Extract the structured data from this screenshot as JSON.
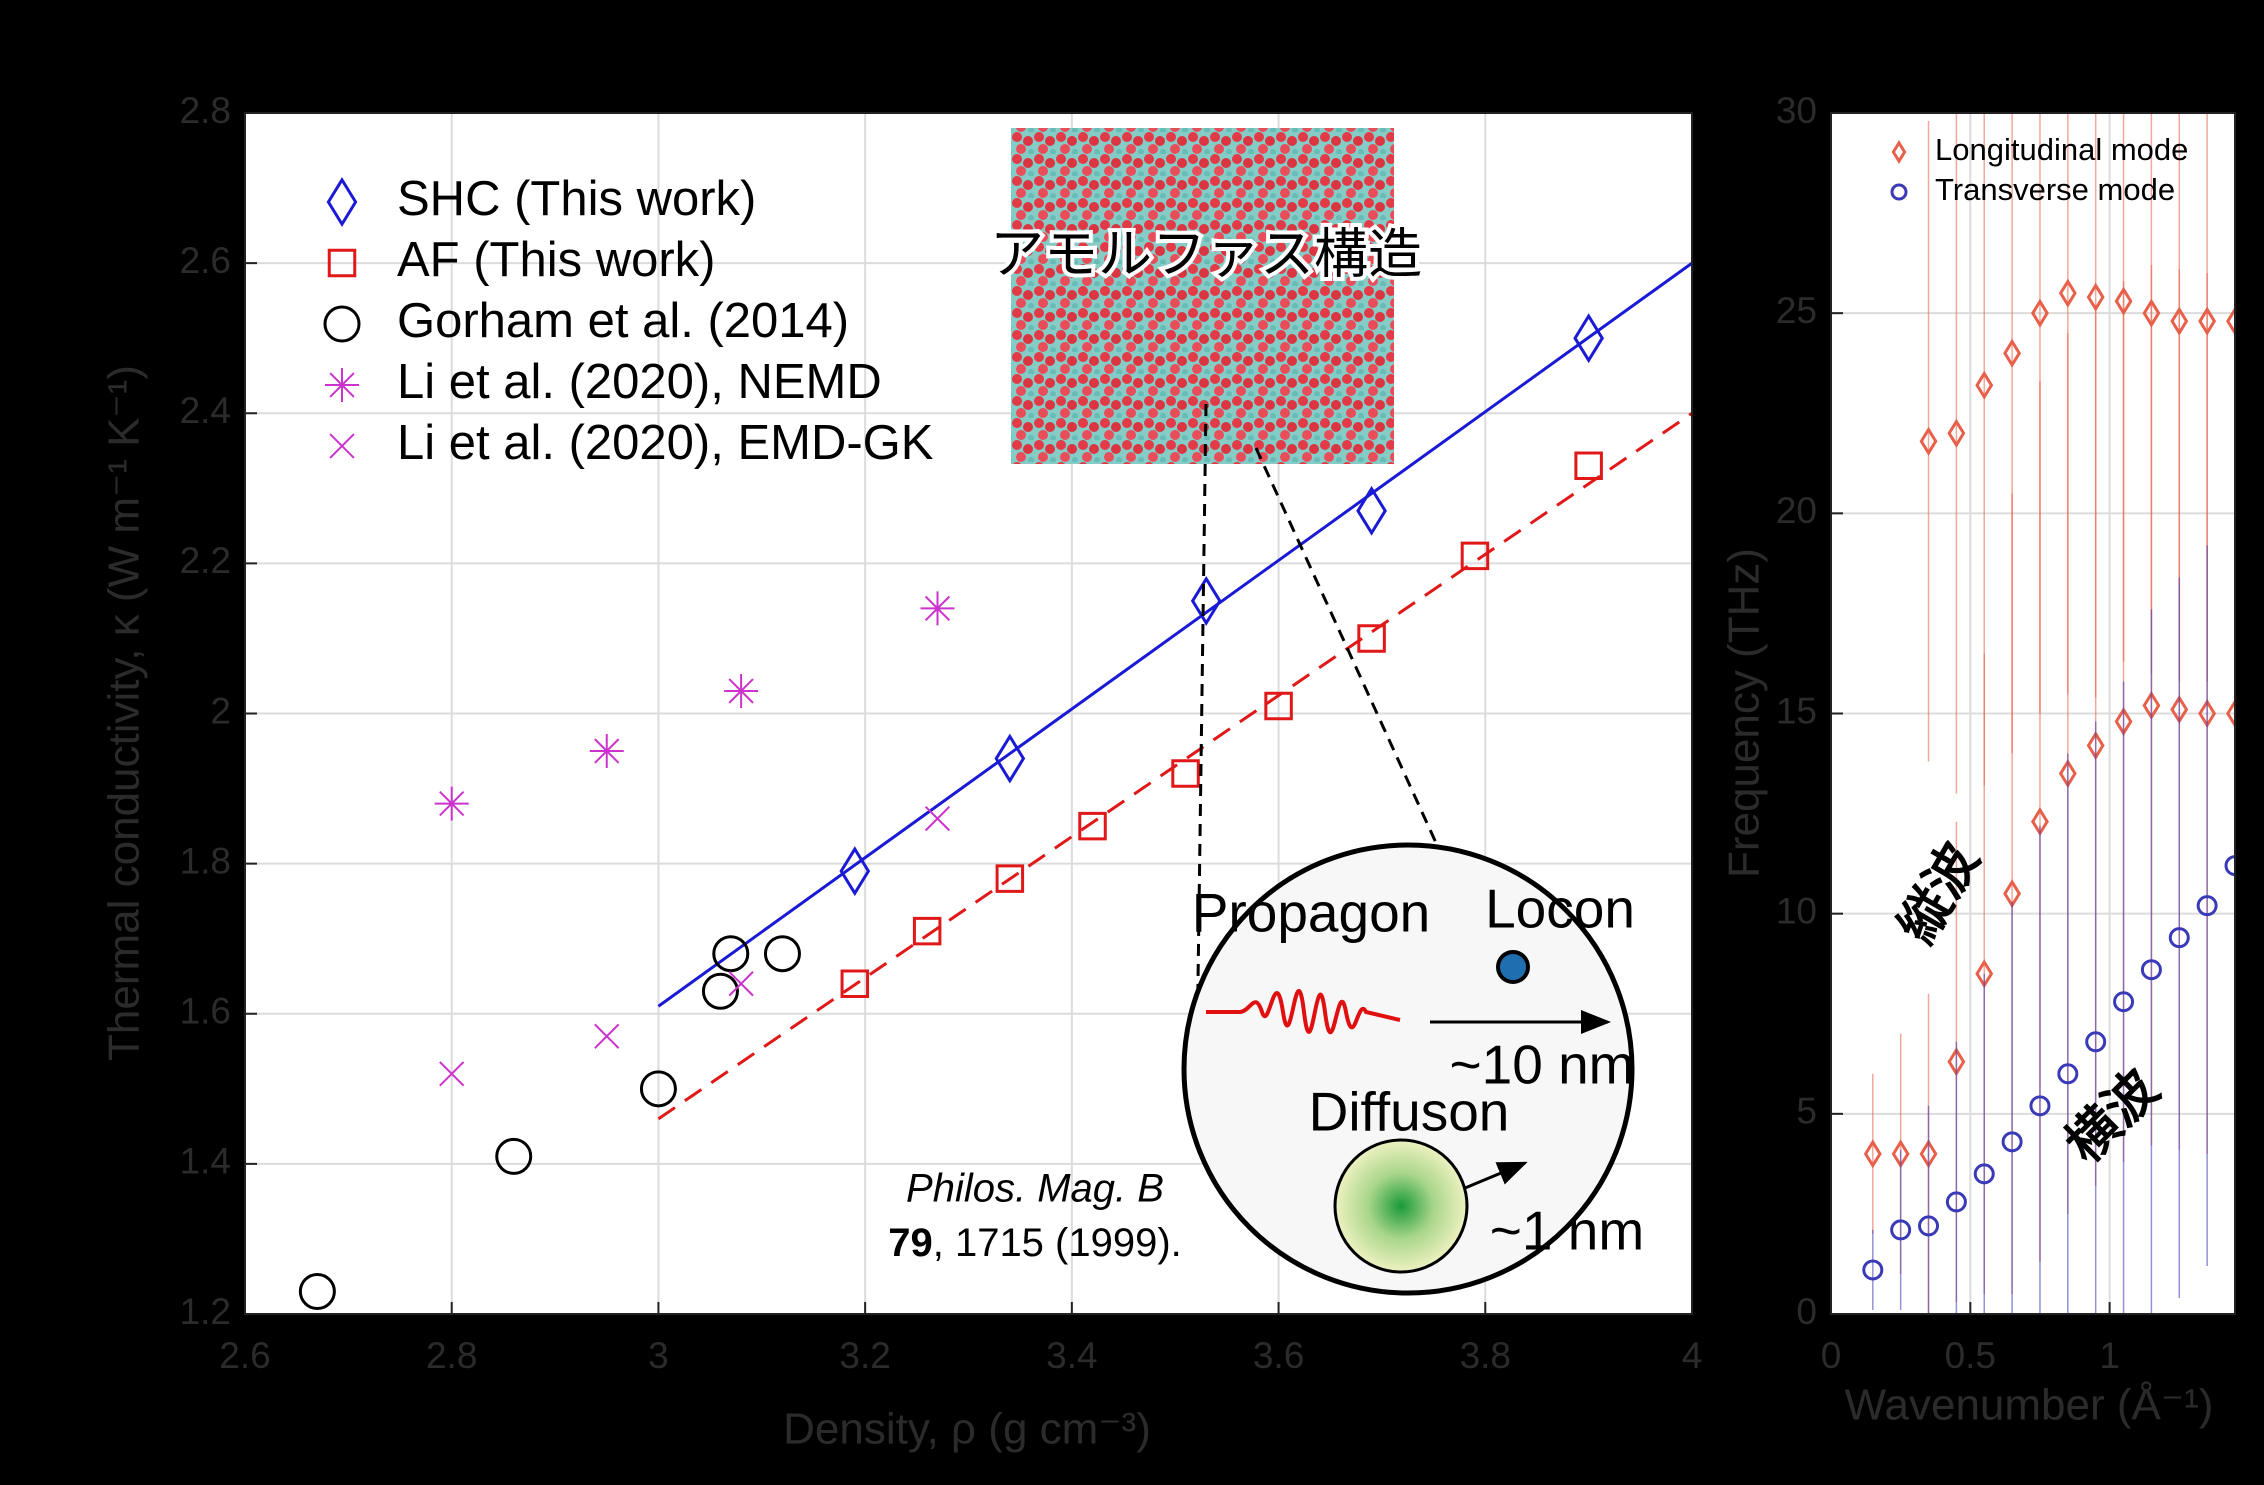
{
  "chart_data": [
    {
      "type": "scatter",
      "xlabel": "Density, ρ (g cm⁻³)",
      "ylabel": "Thermal conductivity, κ (W m⁻¹ K⁻¹)",
      "xlim": [
        2.6,
        4
      ],
      "ylim": [
        1.2,
        2.8
      ],
      "xticks": [
        2.6,
        2.8,
        3,
        3.2,
        3.4,
        3.6,
        3.8,
        4
      ],
      "yticks": [
        1.2,
        1.4,
        1.6,
        1.8,
        2,
        2.2,
        2.4,
        2.6,
        2.8
      ],
      "grid": true,
      "legend": "upper left",
      "series": [
        {
          "name": "SHC (This work)",
          "color": "#1a1ad6",
          "marker": "diamond",
          "x": [
            3.19,
            3.34,
            3.53,
            3.69,
            3.9
          ],
          "values": [
            1.79,
            1.94,
            2.15,
            2.27,
            2.5
          ]
        },
        {
          "name": "AF (This work)",
          "color": "#e01818",
          "marker": "square",
          "x": [
            3.19,
            3.26,
            3.34,
            3.42,
            3.51,
            3.6,
            3.69,
            3.79,
            3.9
          ],
          "values": [
            1.64,
            1.71,
            1.78,
            1.85,
            1.92,
            2.01,
            2.1,
            2.21,
            2.33
          ]
        },
        {
          "name": "Gorham et al. (2014)",
          "color": "#000000",
          "marker": "circle",
          "x": [
            2.67,
            2.86,
            3,
            3.06,
            3.07,
            3.12
          ],
          "values": [
            1.23,
            1.41,
            1.5,
            1.63,
            1.68,
            1.68
          ]
        },
        {
          "name": "Li et al. (2020), NEMD",
          "color": "#cc33cc",
          "marker": "star",
          "x": [
            2.8,
            2.95,
            3.08,
            3.27
          ],
          "values": [
            1.88,
            1.95,
            2.03,
            2.14
          ]
        },
        {
          "name": "Li et al. (2020), EMD-GK",
          "color": "#cc33cc",
          "marker": "x",
          "x": [
            2.8,
            2.95,
            3.08,
            3.27
          ],
          "values": [
            1.52,
            1.57,
            1.64,
            1.86
          ]
        }
      ],
      "fit_lines": [
        {
          "color": "#1a1ad6",
          "dashed": false,
          "x": [
            3,
            4
          ],
          "values": [
            1.61,
            2.6
          ]
        },
        {
          "color": "#e01818",
          "dashed": true,
          "x": [
            3,
            4
          ],
          "values": [
            1.46,
            2.4
          ]
        }
      ],
      "annotations": {
        "structure": "アモルファス構造",
        "propagon": "Propagon",
        "locon": "Locon",
        "propagon_length": "~10 nm",
        "diffuson": "Diffuson",
        "diffuson_length": "~1 nm",
        "citation_journal": "Philos. Mag. B",
        "citation_volume": "79",
        "citation_rest": ", 1715 (1999)."
      }
    },
    {
      "type": "scatter",
      "xlabel": "Wavenumber (Å⁻¹)",
      "ylabel": "Frequency (THz)",
      "xlim": [
        0,
        1.45
      ],
      "ylim": [
        0,
        30
      ],
      "xticks": [
        0,
        0.5,
        1
      ],
      "yticks": [
        0,
        5,
        10,
        15,
        20,
        25,
        30
      ],
      "grid": true,
      "legend": "upper left",
      "series": [
        {
          "name": "Longitudinal mode",
          "color": "#e8604a",
          "marker": "diamond",
          "x": [
            0.15,
            0.25,
            0.35,
            0.45,
            0.55,
            0.65,
            0.75,
            0.85,
            0.95,
            1.05,
            1.15,
            1.25,
            1.35,
            1.45,
            0.35,
            0.45,
            0.55,
            0.65,
            0.75,
            0.85,
            0.95,
            1.05,
            1.15,
            1.25,
            1.35,
            1.45
          ],
          "values": [
            4,
            4,
            4,
            6.3,
            8.5,
            10.5,
            12.3,
            13.5,
            14.2,
            14.8,
            15.2,
            15.1,
            15,
            15,
            21.8,
            22,
            23.2,
            24,
            25,
            25.5,
            25.4,
            25.3,
            25,
            24.8,
            24.8,
            24.8
          ],
          "errors": [
            2,
            3,
            4,
            6,
            8,
            10,
            11,
            11,
            11,
            11,
            11,
            11,
            11,
            11,
            8,
            9,
            10,
            10,
            10,
            10,
            10,
            9,
            9,
            9,
            9,
            9
          ]
        },
        {
          "name": "Transverse mode",
          "color": "#3a3ab8",
          "marker": "circle",
          "x": [
            0.15,
            0.25,
            0.35,
            0.45,
            0.55,
            0.65,
            0.75,
            0.85,
            0.95,
            1.05,
            1.15,
            1.25,
            1.35,
            1.45
          ],
          "values": [
            1.1,
            2.1,
            2.2,
            2.8,
            3.5,
            4.3,
            5.2,
            6,
            6.8,
            7.8,
            8.6,
            9.4,
            10.2,
            11.2
          ],
          "errors": [
            1,
            2,
            3,
            4,
            5,
            6,
            7,
            8,
            8,
            8,
            9,
            9,
            9,
            10
          ]
        }
      ],
      "annotations": {
        "longitudinal": "縦波",
        "transverse": "横波"
      }
    }
  ]
}
